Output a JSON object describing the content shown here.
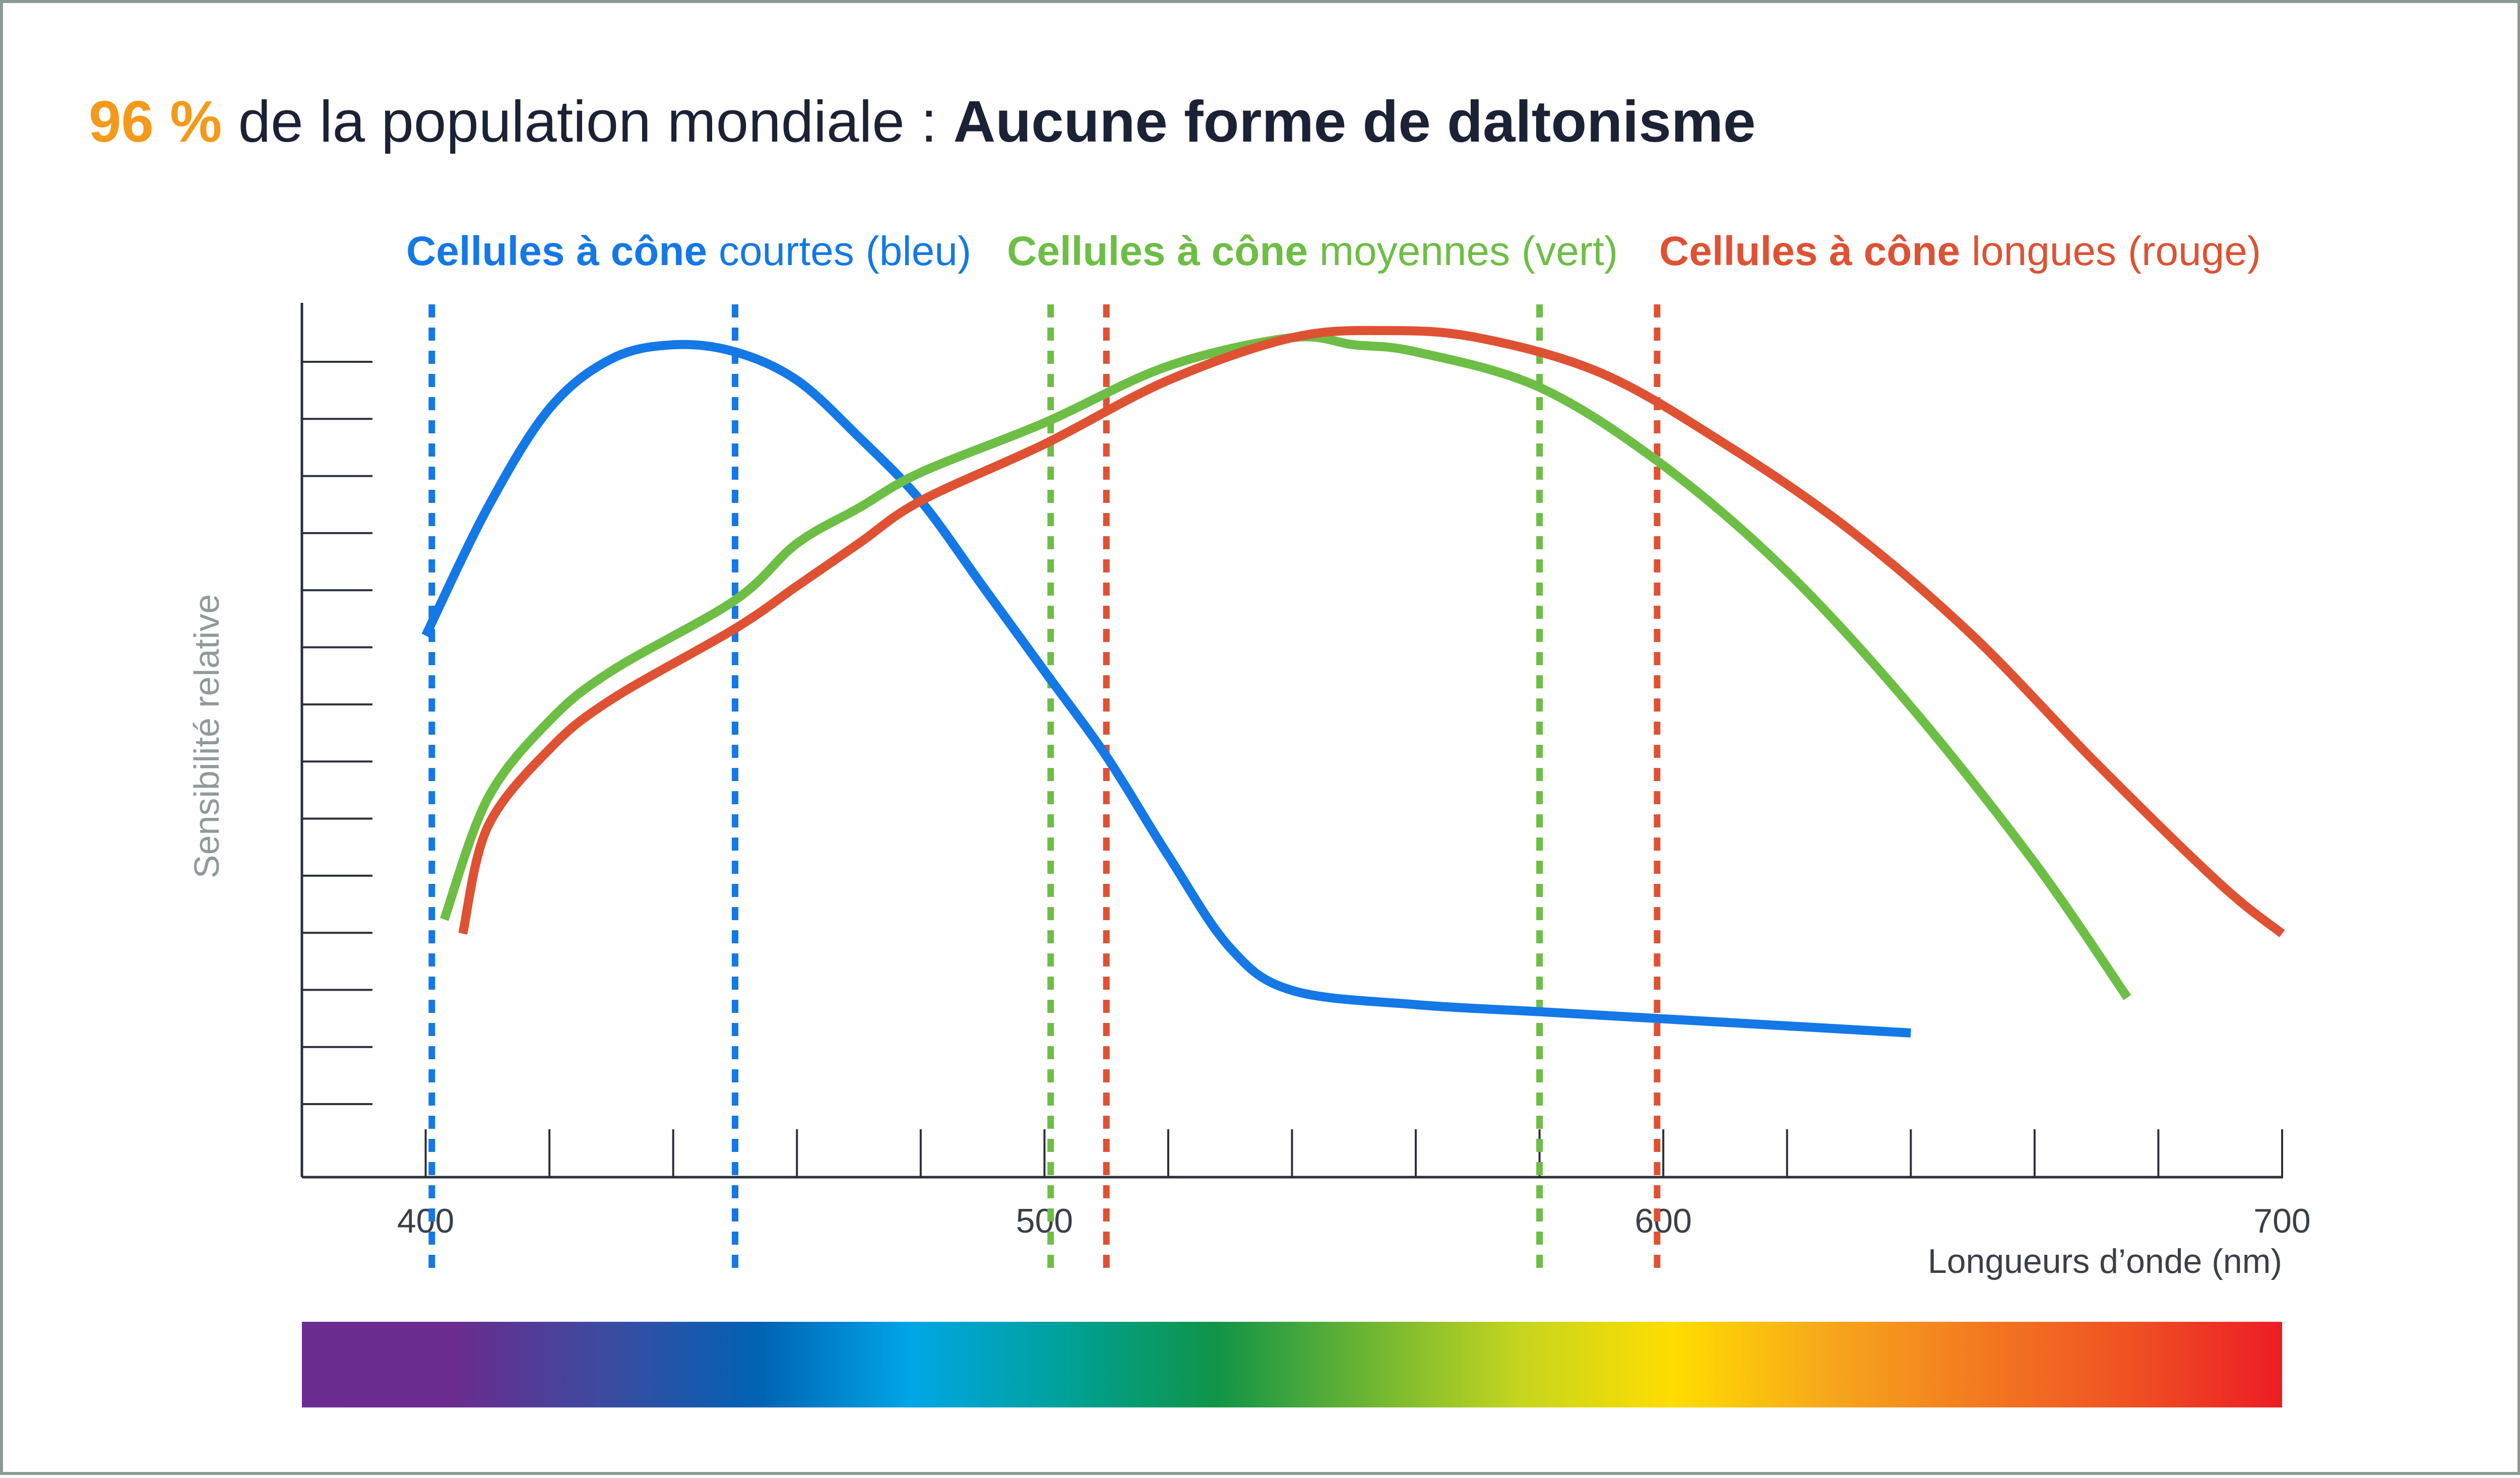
{
  "title": {
    "percent": "96 %",
    "middle": " de la population mondiale : ",
    "bold": "Aucune forme de daltonisme",
    "percent_color": "#F39A1C",
    "text_color": "#1c2235"
  },
  "legend": [
    {
      "bold": "Cellules à cône",
      "rest": " courtes (bleu)",
      "color": "#1478E6"
    },
    {
      "bold": "Cellules à cône",
      "rest": " moyennes (vert)",
      "color": "#6DBE45"
    },
    {
      "bold": "Cellules à cône",
      "rest": " longues (rouge)",
      "color": "#DE5233"
    }
  ],
  "chart_data": {
    "type": "line",
    "xlabel": "Longueurs d’onde (nm)",
    "ylabel": "Sensibilité relative",
    "xlim": [
      380,
      700
    ],
    "ylim": [
      0,
      1.0
    ],
    "x_ticks": [
      400,
      500,
      600,
      700
    ],
    "x_tick_labels": [
      "400",
      "500",
      "600",
      "700"
    ],
    "x_minor_step": 20,
    "y_tick_count": 14,
    "grid": false,
    "legend_position": "top",
    "series": [
      {
        "name": "Cellules à cône courtes (bleu)",
        "color": "#1478E6",
        "x": [
          400,
          410,
          420,
          430,
          440,
          450,
          460,
          470,
          480,
          490,
          500,
          510,
          520,
          530,
          540,
          560,
          580,
          600,
          620,
          640
        ],
        "y": [
          0.57,
          0.75,
          0.89,
          0.96,
          0.98,
          0.97,
          0.93,
          0.85,
          0.76,
          0.64,
          0.52,
          0.4,
          0.26,
          0.13,
          0.07,
          0.05,
          0.04,
          0.03,
          0.02,
          0.01
        ]
      },
      {
        "name": "Cellules à cône moyennes (vert)",
        "color": "#6DBE45",
        "x": [
          403,
          410,
          420,
          430,
          450,
          460,
          470,
          480,
          500,
          520,
          540,
          550,
          560,
          580,
          600,
          620,
          640,
          660,
          675
        ],
        "y": [
          0.17,
          0.34,
          0.45,
          0.52,
          0.62,
          0.7,
          0.75,
          0.8,
          0.87,
          0.95,
          0.99,
          0.98,
          0.97,
          0.92,
          0.81,
          0.66,
          0.47,
          0.25,
          0.06
        ]
      },
      {
        "name": "Cellules à cône longues (rouge)",
        "color": "#DE5233",
        "x": [
          406,
          410,
          420,
          430,
          450,
          460,
          470,
          480,
          500,
          520,
          540,
          555,
          570,
          590,
          610,
          630,
          650,
          670,
          690,
          700
        ],
        "y": [
          0.15,
          0.3,
          0.41,
          0.48,
          0.58,
          0.64,
          0.7,
          0.76,
          0.84,
          0.93,
          0.99,
          1.0,
          0.99,
          0.94,
          0.84,
          0.72,
          0.57,
          0.39,
          0.22,
          0.15
        ]
      }
    ],
    "reference_lines": [
      {
        "x": 401,
        "color": "#1478E6"
      },
      {
        "x": 450,
        "color": "#1478E6"
      },
      {
        "x": 501,
        "color": "#6DBE45"
      },
      {
        "x": 510,
        "color": "#DE5233"
      },
      {
        "x": 580,
        "color": "#6DBE45"
      },
      {
        "x": 599,
        "color": "#DE5233"
      }
    ],
    "spectrum_colors": [
      "#6B2C8F",
      "#6A2C8E",
      "#3C4BA0",
      "#0062B4",
      "#00A6E6",
      "#00A199",
      "#109447",
      "#6DB533",
      "#C6D51E",
      "#FFDD00",
      "#F7A81B",
      "#F37A20",
      "#EF5123",
      "#ED1C24"
    ]
  }
}
